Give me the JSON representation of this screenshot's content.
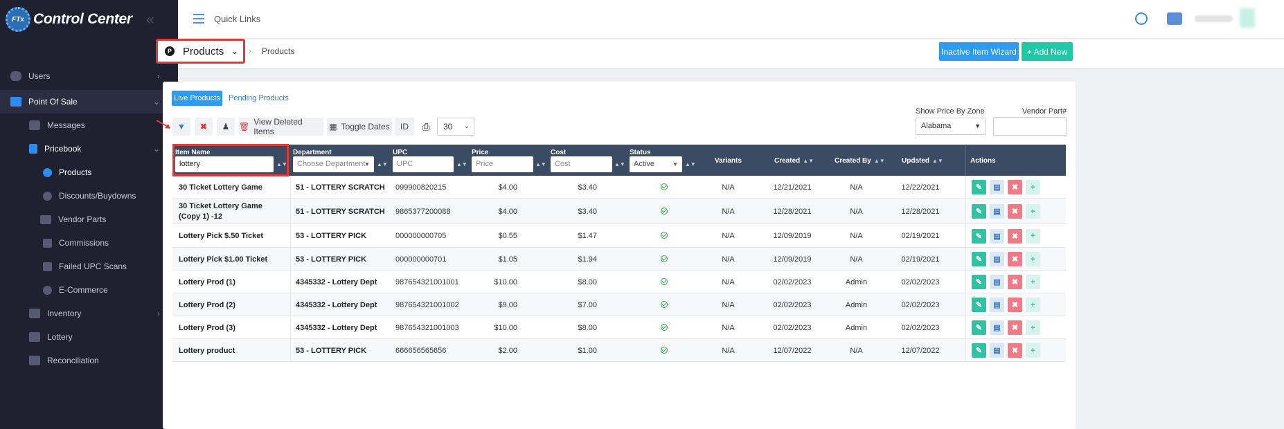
{
  "app": {
    "title": "Control Center",
    "logo_text": "FTx"
  },
  "sidebar": {
    "items": [
      {
        "label": "Users"
      },
      {
        "label": "Point Of Sale"
      },
      {
        "label": "Messages"
      },
      {
        "label": "Pricebook"
      },
      {
        "label": "Products"
      },
      {
        "label": "Discounts/Buydowns"
      },
      {
        "label": "Vendor Parts"
      },
      {
        "label": "Commissions"
      },
      {
        "label": "Failed UPC Scans"
      },
      {
        "label": "E-Commerce"
      },
      {
        "label": "Inventory"
      },
      {
        "label": "Lottery"
      },
      {
        "label": "Reconciliation"
      }
    ]
  },
  "topbar": {
    "quick_links": "Quick Links"
  },
  "header": {
    "module": "Products",
    "module_badge": "P",
    "breadcrumb": "Products",
    "inactive_wizard": "Inactive Item Wizard",
    "add_new": "+ Add New"
  },
  "tabs": {
    "live": "Live Products",
    "pending": "Pending Products"
  },
  "toolbar": {
    "view_deleted": "View Deleted Items",
    "toggle_dates": "Toggle Dates",
    "id": "ID",
    "page_size": "30"
  },
  "filters": {
    "zone_label": "Show Price By Zone",
    "zone_value": "Alabama",
    "vendor_part_label": "Vendor Part#",
    "vendor_part_value": ""
  },
  "table": {
    "headers": {
      "item_name": "Item Name",
      "department": "Department",
      "upc": "UPC",
      "price": "Price",
      "cost": "Cost",
      "status": "Status",
      "variants": "Variants",
      "created": "Created",
      "created_by": "Created By",
      "updated": "Updated",
      "actions": "Actions"
    },
    "filter_inputs": {
      "item_name": "lottery",
      "department": "Choose Department",
      "upc": "UPC",
      "price": "Price",
      "cost": "Cost",
      "status": "Active"
    },
    "rows": [
      {
        "name": "30 Ticket Lottery Game",
        "department": "51 - LOTTERY SCRATCH",
        "upc": "099900820215",
        "price": "$4.00",
        "cost": "$3.40",
        "variants": "N/A",
        "created": "12/21/2021",
        "created_by": "N/A",
        "updated": "12/22/2021"
      },
      {
        "name": "30 Ticket Lottery Game (Copy 1) -12",
        "department": "51 - LOTTERY SCRATCH",
        "upc": "9865377200088",
        "price": "$4.00",
        "cost": "$3.40",
        "variants": "N/A",
        "created": "12/28/2021",
        "created_by": "N/A",
        "updated": "12/28/2021"
      },
      {
        "name": "Lottery Pick $.50 Ticket",
        "department": "53 - LOTTERY PICK",
        "upc": "000000000705",
        "price": "$0.55",
        "cost": "$1.47",
        "variants": "N/A",
        "created": "12/09/2019",
        "created_by": "N/A",
        "updated": "02/19/2021"
      },
      {
        "name": "Lottery Pick $1.00 Ticket",
        "department": "53 - LOTTERY PICK",
        "upc": "000000000701",
        "price": "$1.05",
        "cost": "$1.94",
        "variants": "N/A",
        "created": "12/09/2019",
        "created_by": "N/A",
        "updated": "02/19/2021"
      },
      {
        "name": "Lottery Prod (1)",
        "department": "4345332 - Lottery Dept",
        "upc": "987654321001001",
        "price": "$10.00",
        "cost": "$8.00",
        "variants": "N/A",
        "created": "02/02/2023",
        "created_by": "Admin",
        "updated": "02/02/2023"
      },
      {
        "name": "Lottery Prod (2)",
        "department": "4345332 - Lottery Dept",
        "upc": "987654321001002",
        "price": "$9.00",
        "cost": "$7.00",
        "variants": "N/A",
        "created": "02/02/2023",
        "created_by": "Admin",
        "updated": "02/02/2023"
      },
      {
        "name": "Lottery Prod (3)",
        "department": "4345332 - Lottery Dept",
        "upc": "987654321001003",
        "price": "$10.00",
        "cost": "$8.00",
        "variants": "N/A",
        "created": "02/02/2023",
        "created_by": "Admin",
        "updated": "02/02/2023"
      },
      {
        "name": "Lottery product",
        "department": "53 - LOTTERY PICK",
        "upc": "666656565656",
        "price": "$2.00",
        "cost": "$1.00",
        "variants": "N/A",
        "created": "12/07/2022",
        "created_by": "N/A",
        "updated": "12/07/2022"
      }
    ]
  },
  "colors": {
    "accent": "#2d9cf0",
    "success": "#1fc8a6",
    "danger": "#e03a3a",
    "sidebar": "#1f2131",
    "table_header": "#3a4b63"
  }
}
